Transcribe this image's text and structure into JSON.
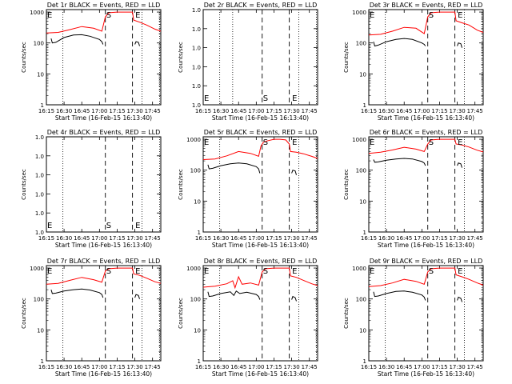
{
  "figure": {
    "xtick_labels": [
      "16:15",
      "16:30",
      "16:45",
      "17:00",
      "17:15",
      "17:30",
      "17:45"
    ],
    "xlabel": "Start Time (16-Feb-15 16:13:40)",
    "ylabel": "Counts/sec",
    "marker_labels": {
      "start": "S",
      "end": "E"
    }
  },
  "chart_data": [
    {
      "type": "line",
      "title": "Det 1r BLACK = Events, RED = LLD",
      "yscale": "log",
      "ylim": [
        1,
        1200
      ],
      "ytick_labels": [
        "1",
        "10",
        "100",
        "1000"
      ],
      "ytick_values": [
        1,
        10,
        100,
        1000
      ],
      "xlim": [
        "16:15",
        "17:52"
      ],
      "dotted_lines": [
        "16:29",
        "17:36",
        "17:51"
      ],
      "dashed_lines": [
        "17:05",
        "17:28"
      ],
      "marker_label_positions": {
        "E_left": "16:15",
        "S": "17:05",
        "E": "17:29"
      },
      "series": [
        {
          "name": "RED = LLD",
          "color": "#ff0000",
          "x": [
            "16:15",
            "16:25",
            "16:35",
            "16:45",
            "16:55",
            "17:02",
            "17:05",
            "17:08",
            "17:15",
            "17:28",
            "17:29",
            "17:34",
            "17:40",
            "17:47",
            "17:52"
          ],
          "y": [
            210,
            220,
            270,
            340,
            300,
            240,
            700,
            950,
            1000,
            1000,
            550,
            470,
            380,
            280,
            240
          ]
        },
        {
          "name": "BLACK = Events",
          "x": [
            "16:19",
            "16:20",
            "16:23",
            "16:30",
            "16:38",
            "16:45",
            "16:52",
            "17:00",
            "17:02",
            "17:03"
          ],
          "y": [
            140,
            100,
            105,
            150,
            180,
            185,
            165,
            130,
            110,
            90
          ]
        },
        {
          "x": [
            "17:30",
            "17:31",
            "17:33",
            "17:34"
          ],
          "y": [
            90,
            110,
            105,
            80
          ]
        }
      ]
    },
    {
      "type": "line",
      "title": "Det 2r BLACK = Events, RED = LLD",
      "yscale": "log",
      "ylim": [
        0.8,
        1.2
      ],
      "ytick_labels": [
        "1.0",
        "1.0",
        "1.0",
        "1.0",
        "1.0",
        "1.0"
      ],
      "xlim": [
        "16:15",
        "17:52"
      ],
      "dotted_lines": [
        "16:29",
        "16:40",
        "17:36",
        "17:51"
      ],
      "dashed_lines": [
        "17:05",
        "17:28"
      ],
      "marker_label_positions": {
        "E_left": "16:15",
        "S": "17:05",
        "E": "17:29"
      },
      "series": []
    },
    {
      "type": "line",
      "title": "Det 3r BLACK = Events, RED = LLD",
      "yscale": "log",
      "ylim": [
        1,
        1200
      ],
      "ytick_labels": [
        "1",
        "10",
        "100",
        "1000"
      ],
      "ytick_values": [
        1,
        10,
        100,
        1000
      ],
      "xlim": [
        "16:15",
        "17:52"
      ],
      "dotted_lines": [
        "16:29",
        "17:36",
        "17:51"
      ],
      "dashed_lines": [
        "17:05",
        "17:28"
      ],
      "marker_label_positions": {
        "E_left": "16:15",
        "S": "17:05",
        "E": "17:29"
      },
      "series": [
        {
          "name": "RED = LLD",
          "color": "#ff0000",
          "x": [
            "16:15",
            "16:25",
            "16:35",
            "16:45",
            "16:55",
            "17:02",
            "17:05",
            "17:08",
            "17:15",
            "17:28",
            "17:29",
            "17:34",
            "17:40",
            "17:47",
            "17:52"
          ],
          "y": [
            180,
            190,
            240,
            320,
            300,
            200,
            700,
            950,
            1000,
            1000,
            520,
            450,
            380,
            260,
            220
          ]
        },
        {
          "name": "BLACK = Events",
          "x": [
            "16:19",
            "16:20",
            "16:23",
            "16:30",
            "16:38",
            "16:45",
            "16:52",
            "17:00",
            "17:02",
            "17:03"
          ],
          "y": [
            110,
            80,
            85,
            110,
            130,
            140,
            130,
            100,
            90,
            80
          ]
        },
        {
          "x": [
            "17:30",
            "17:31",
            "17:33",
            "17:34"
          ],
          "y": [
            80,
            100,
            95,
            70
          ]
        }
      ]
    },
    {
      "type": "line",
      "title": "Det 4r BLACK = Events, RED = LLD",
      "yscale": "log",
      "ylim": [
        0.8,
        1.2
      ],
      "ytick_labels": [
        "1.0",
        "1.0",
        "1.0",
        "1.0",
        "1.0",
        "1.0"
      ],
      "xlim": [
        "16:15",
        "17:52"
      ],
      "dotted_lines": [
        "16:29",
        "17:36",
        "17:51"
      ],
      "dashed_lines": [
        "17:05",
        "17:28"
      ],
      "marker_label_positions": {
        "E_left": "16:15",
        "S": "17:05",
        "E": "17:29"
      },
      "series": []
    },
    {
      "type": "line",
      "title": "Det 5r BLACK = Events, RED = LLD",
      "yscale": "log",
      "ylim": [
        1,
        1200
      ],
      "ytick_labels": [
        "1",
        "10",
        "100",
        "1000"
      ],
      "ytick_values": [
        1,
        10,
        100,
        1000
      ],
      "xlim": [
        "16:15",
        "17:52"
      ],
      "dotted_lines": [
        "16:29",
        "17:36",
        "17:51"
      ],
      "dashed_lines": [
        "17:05",
        "17:28"
      ],
      "marker_label_positions": {
        "E_left": "16:15",
        "S": "17:05",
        "E": "17:29"
      },
      "series": [
        {
          "name": "RED = LLD",
          "color": "#ff0000",
          "x": [
            "16:15",
            "16:25",
            "16:35",
            "16:45",
            "16:55",
            "17:02",
            "17:04",
            "17:06",
            "17:10",
            "17:15",
            "17:20",
            "17:25",
            "17:28",
            "17:29",
            "17:34",
            "17:40",
            "17:47",
            "17:52"
          ],
          "y": [
            220,
            230,
            290,
            400,
            350,
            280,
            600,
            800,
            900,
            1000,
            1000,
            950,
            700,
            400,
            380,
            340,
            280,
            240
          ]
        },
        {
          "name": "BLACK = Events",
          "x": [
            "16:19",
            "16:20",
            "16:23",
            "16:30",
            "16:38",
            "16:45",
            "16:52",
            "17:00",
            "17:02",
            "17:03"
          ],
          "y": [
            150,
            110,
            115,
            140,
            160,
            170,
            160,
            130,
            110,
            80
          ]
        },
        {
          "x": [
            "17:30",
            "17:31",
            "17:33",
            "17:34"
          ],
          "y": [
            80,
            100,
            95,
            70
          ]
        }
      ]
    },
    {
      "type": "line",
      "title": "Det 6r BLACK = Events, RED = LLD",
      "yscale": "log",
      "ylim": [
        1,
        1200
      ],
      "ytick_labels": [
        "1",
        "10",
        "100",
        "1000"
      ],
      "ytick_values": [
        1,
        10,
        100,
        1000
      ],
      "xlim": [
        "16:15",
        "17:52"
      ],
      "dotted_lines": [
        "16:29",
        "17:36",
        "17:51"
      ],
      "dashed_lines": [
        "17:05",
        "17:28"
      ],
      "marker_label_positions": {
        "E_left": "16:15",
        "S": "17:05",
        "E": "17:29"
      },
      "series": [
        {
          "name": "RED = LLD",
          "color": "#ff0000",
          "x": [
            "16:15",
            "16:25",
            "16:35",
            "16:45",
            "16:55",
            "17:02",
            "17:05",
            "17:08",
            "17:15",
            "17:28",
            "17:29",
            "17:34",
            "17:40",
            "17:47",
            "17:52"
          ],
          "y": [
            350,
            380,
            450,
            550,
            480,
            400,
            700,
            950,
            1000,
            1000,
            700,
            650,
            560,
            440,
            390
          ]
        },
        {
          "name": "BLACK = Events",
          "x": [
            "16:19",
            "16:20",
            "16:23",
            "16:30",
            "16:38",
            "16:45",
            "16:52",
            "17:00",
            "17:02",
            "17:03"
          ],
          "y": [
            220,
            180,
            185,
            210,
            230,
            240,
            230,
            190,
            170,
            140
          ]
        },
        {
          "x": [
            "17:30",
            "17:31",
            "17:33",
            "17:34"
          ],
          "y": [
            140,
            170,
            160,
            120
          ]
        }
      ]
    },
    {
      "type": "line",
      "title": "Det 7r BLACK = Events, RED = LLD",
      "yscale": "log",
      "ylim": [
        1,
        1200
      ],
      "ytick_labels": [
        "1",
        "10",
        "100",
        "1000"
      ],
      "ytick_values": [
        1,
        10,
        100,
        1000
      ],
      "xlim": [
        "16:15",
        "17:52"
      ],
      "dotted_lines": [
        "16:29",
        "17:36",
        "17:51"
      ],
      "dashed_lines": [
        "17:05",
        "17:28"
      ],
      "marker_label_positions": {
        "E_left": "16:15",
        "S": "17:05",
        "E": "17:29"
      },
      "series": [
        {
          "name": "RED = LLD",
          "color": "#ff0000",
          "x": [
            "16:15",
            "16:25",
            "16:35",
            "16:45",
            "16:55",
            "17:02",
            "17:05",
            "17:08",
            "17:15",
            "17:28",
            "17:29",
            "17:34",
            "17:40",
            "17:47",
            "17:52"
          ],
          "y": [
            300,
            320,
            400,
            500,
            420,
            350,
            800,
            950,
            1000,
            1000,
            650,
            580,
            470,
            360,
            320
          ]
        },
        {
          "name": "BLACK = Events",
          "x": [
            "16:19",
            "16:20",
            "16:23",
            "16:30",
            "16:38",
            "16:45",
            "16:52",
            "17:00",
            "17:02",
            "17:03"
          ],
          "y": [
            200,
            150,
            155,
            180,
            200,
            210,
            195,
            160,
            140,
            110
          ]
        },
        {
          "x": [
            "17:30",
            "17:31",
            "17:33",
            "17:34"
          ],
          "y": [
            110,
            140,
            130,
            100
          ]
        }
      ]
    },
    {
      "type": "line",
      "title": "Det 8r BLACK = Events, RED = LLD",
      "yscale": "log",
      "ylim": [
        1,
        1200
      ],
      "ytick_labels": [
        "1",
        "10",
        "100",
        "1000"
      ],
      "ytick_values": [
        1,
        10,
        100,
        1000
      ],
      "xlim": [
        "16:15",
        "17:52"
      ],
      "dotted_lines": [
        "16:29",
        "17:36",
        "17:51"
      ],
      "dashed_lines": [
        "17:05",
        "17:28"
      ],
      "marker_label_positions": {
        "E_left": "16:15",
        "S": "17:05",
        "E": "17:29"
      },
      "series": [
        {
          "name": "RED = LLD",
          "color": "#ff0000",
          "x": [
            "16:15",
            "16:25",
            "16:35",
            "16:40",
            "16:42",
            "16:45",
            "16:48",
            "16:55",
            "17:02",
            "17:05",
            "17:08",
            "17:15",
            "17:28",
            "17:29",
            "17:34",
            "17:40",
            "17:47",
            "17:52"
          ],
          "y": [
            240,
            260,
            310,
            390,
            230,
            520,
            300,
            330,
            280,
            750,
            950,
            1000,
            1000,
            560,
            500,
            400,
            310,
            270
          ]
        },
        {
          "name": "BLACK = Events",
          "x": [
            "16:19",
            "16:20",
            "16:23",
            "16:30",
            "16:38",
            "16:41",
            "16:43",
            "16:46",
            "16:52",
            "17:00",
            "17:02",
            "17:03"
          ],
          "y": [
            170,
            120,
            125,
            150,
            170,
            130,
            180,
            150,
            165,
            140,
            120,
            95
          ]
        },
        {
          "x": [
            "17:30",
            "17:31",
            "17:33",
            "17:34"
          ],
          "y": [
            95,
            120,
            110,
            85
          ]
        }
      ]
    },
    {
      "type": "line",
      "title": "Det 9r BLACK = Events, RED = LLD",
      "yscale": "log",
      "ylim": [
        1,
        1200
      ],
      "ytick_labels": [
        "1",
        "10",
        "100",
        "1000"
      ],
      "ytick_values": [
        1,
        10,
        100,
        1000
      ],
      "xlim": [
        "16:15",
        "17:52"
      ],
      "dotted_lines": [
        "16:29",
        "17:36",
        "17:51"
      ],
      "dashed_lines": [
        "17:05",
        "17:28"
      ],
      "marker_label_positions": {
        "E_left": "16:15",
        "S": "17:05",
        "E": "17:29"
      },
      "series": [
        {
          "name": "RED = LLD",
          "color": "#ff0000",
          "x": [
            "16:15",
            "16:25",
            "16:35",
            "16:45",
            "16:55",
            "17:02",
            "17:05",
            "17:08",
            "17:15",
            "17:28",
            "17:29",
            "17:34",
            "17:40",
            "17:47",
            "17:52"
          ],
          "y": [
            250,
            270,
            330,
            430,
            370,
            300,
            750,
            950,
            1000,
            1000,
            600,
            520,
            430,
            330,
            280
          ]
        },
        {
          "name": "BLACK = Events",
          "x": [
            "16:19",
            "16:20",
            "16:23",
            "16:30",
            "16:38",
            "16:45",
            "16:52",
            "17:00",
            "17:02",
            "17:03"
          ],
          "y": [
            170,
            120,
            125,
            150,
            175,
            180,
            165,
            135,
            115,
            90
          ]
        },
        {
          "x": [
            "17:30",
            "17:31",
            "17:33",
            "17:34"
          ],
          "y": [
            90,
            115,
            105,
            80
          ]
        }
      ]
    }
  ]
}
